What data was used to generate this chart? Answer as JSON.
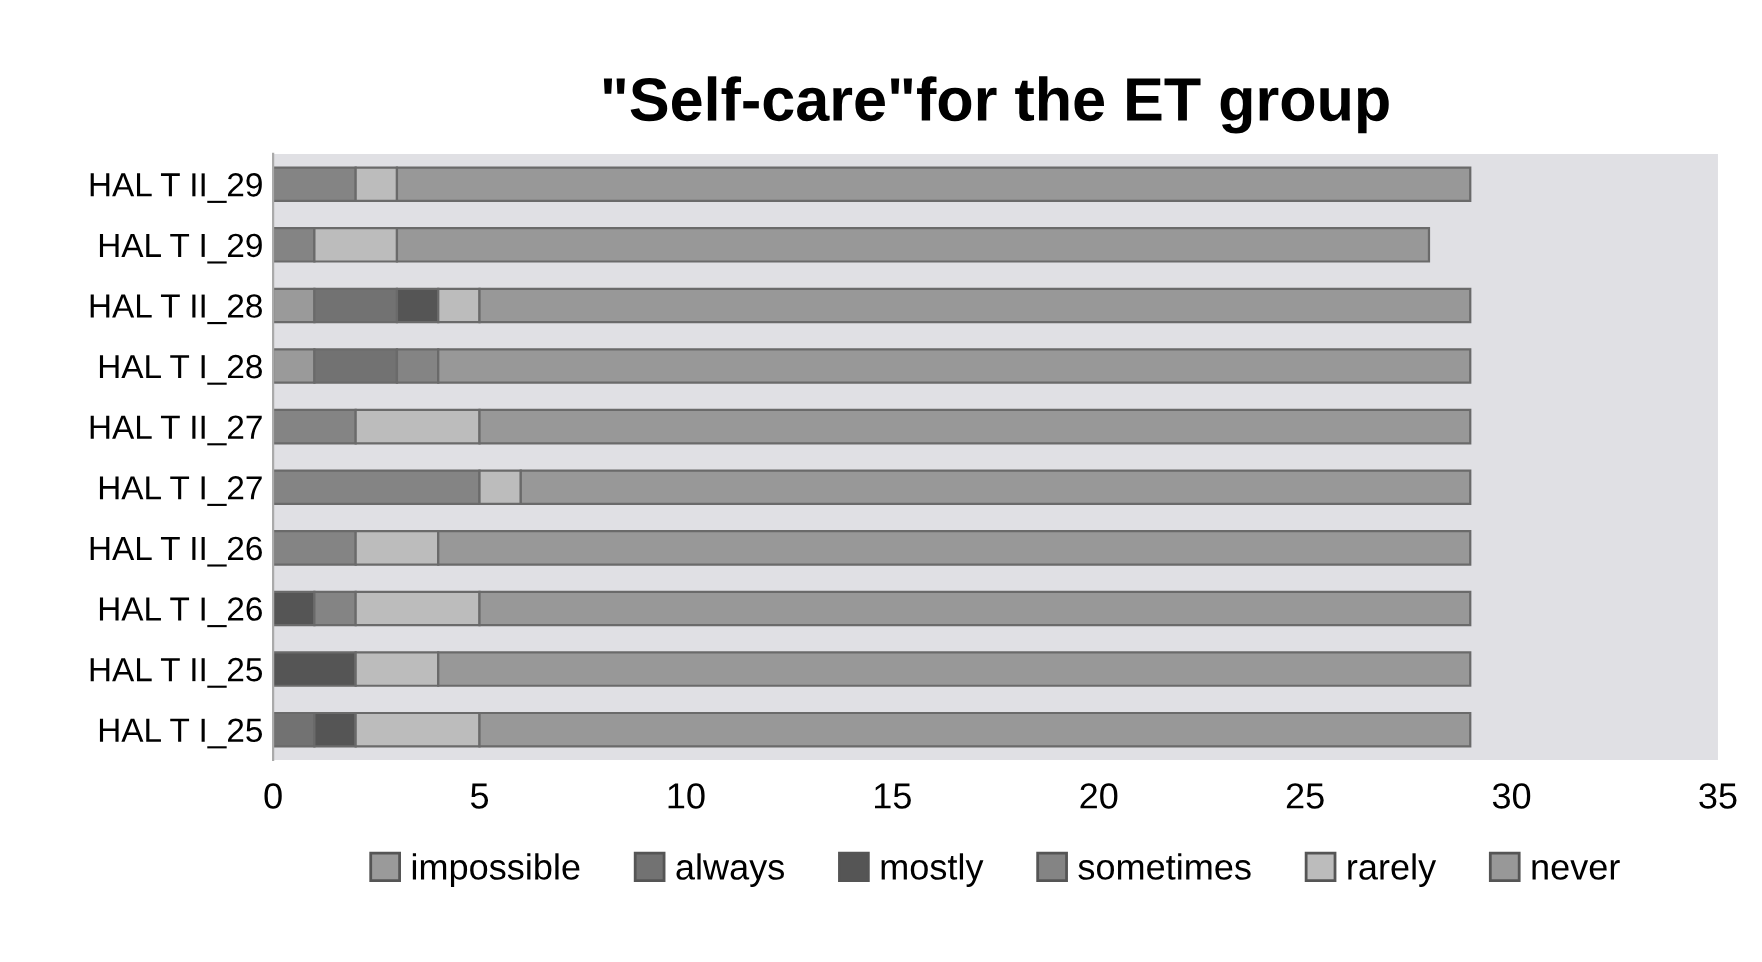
{
  "chart_data": {
    "type": "bar",
    "orientation": "horizontal",
    "stacked": true,
    "title": "\"Self-care\"for the ET group",
    "categories": [
      "HAL T II_29",
      "HAL T I_29",
      "HAL T II_28",
      "HAL T I_28",
      "HAL T II_27",
      "HAL T I_27",
      "HAL T II_26",
      "HAL T I_26",
      "HAL T II_25",
      "HAL T I_25"
    ],
    "series": [
      {
        "name": "impossible",
        "color": "#9a9a9a",
        "values": [
          0,
          0,
          1,
          1,
          0,
          0,
          0,
          0,
          0,
          0
        ]
      },
      {
        "name": "always",
        "color": "#727272",
        "values": [
          0,
          0,
          2,
          2,
          0,
          0,
          0,
          0,
          0,
          1
        ]
      },
      {
        "name": "mostly",
        "color": "#555555",
        "values": [
          0,
          0,
          1,
          0,
          0,
          0,
          0,
          1,
          2,
          1
        ]
      },
      {
        "name": "sometimes",
        "color": "#848484",
        "values": [
          2,
          1,
          0,
          1,
          2,
          5,
          2,
          1,
          0,
          0
        ]
      },
      {
        "name": "rarely",
        "color": "#bcbcbc",
        "values": [
          1,
          2,
          1,
          0,
          3,
          1,
          2,
          3,
          2,
          3
        ]
      },
      {
        "name": "never",
        "color": "#989898",
        "values": [
          26,
          25,
          24,
          25,
          24,
          23,
          25,
          24,
          25,
          24
        ]
      }
    ],
    "xlim": [
      0,
      35
    ],
    "xticks": [
      0,
      5,
      10,
      15,
      20,
      25,
      30,
      35
    ],
    "grid": false,
    "legend": "bottom"
  }
}
